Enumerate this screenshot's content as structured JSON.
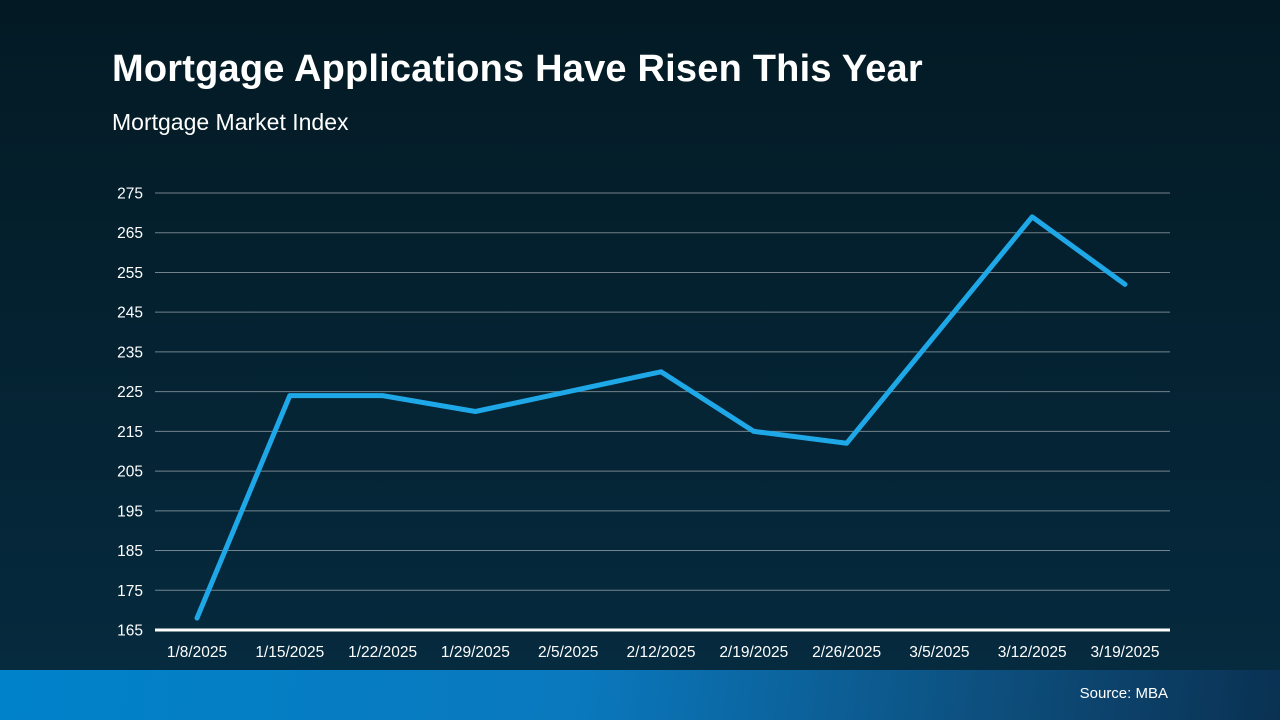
{
  "page": {
    "bg_top": "#031A24",
    "bg_bottom": "#062B40"
  },
  "header": {
    "title": "Mortgage Applications Have Risen This Year",
    "subtitle": "Mortgage Market Index"
  },
  "footer": {
    "source_label": "Source: MBA",
    "gradient_stops": [
      "#0082CA",
      "#0A79BE",
      "#0D4E7C",
      "#0A3152"
    ],
    "gradient_positions_pct": [
      0,
      45,
      78,
      100
    ]
  },
  "chart_data": {
    "type": "line",
    "title": "Mortgage Applications Have Risen This Year",
    "subtitle": "Mortgage Market Index",
    "source": "Source: MBA",
    "x": [
      "1/8/2025",
      "1/15/2025",
      "1/22/2025",
      "1/29/2025",
      "2/5/2025",
      "2/12/2025",
      "2/19/2025",
      "2/26/2025",
      "3/5/2025",
      "3/12/2025",
      "3/19/2025"
    ],
    "series": [
      {
        "name": "Mortgage Market Index",
        "values": [
          168,
          224,
          224,
          220,
          225,
          230,
          215,
          212,
          240.5,
          269,
          252
        ]
      }
    ],
    "ylim": [
      165,
      275
    ],
    "y_ticks": [
      165,
      175,
      185,
      195,
      205,
      215,
      225,
      235,
      245,
      255,
      265,
      275
    ],
    "xlabel": "",
    "ylabel": "",
    "grid": true,
    "legend_position": "none",
    "line_color": "#1FA8E8",
    "line_width": 5,
    "gridline_color": "rgba(205,210,214,0.55)",
    "axis_line_color": "#FFFFFF",
    "tick_label_color": "#FFFFFF"
  }
}
